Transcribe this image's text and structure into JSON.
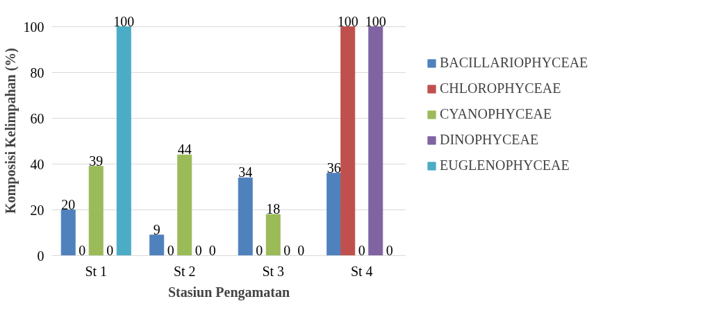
{
  "chart_data": {
    "type": "bar",
    "xlabel": "Stasiun Pengamatan",
    "ylabel": "Komposisi Kelimpahan (%)",
    "categories": [
      "St 1",
      "St 2",
      "St 3",
      "St 4"
    ],
    "series": [
      {
        "name": "BACILLARIOPHYCEAE",
        "color": "#4f81bd",
        "values": [
          20,
          9,
          34,
          36
        ]
      },
      {
        "name": "CHLOROPHYCEAE",
        "color": "#c0504d",
        "values": [
          0,
          0,
          0,
          100
        ]
      },
      {
        "name": "CYANOPHYCEAE",
        "color": "#9bbb59",
        "values": [
          39,
          44,
          18,
          0
        ]
      },
      {
        "name": "DINOPHYCEAE",
        "color": "#8064a2",
        "values": [
          0,
          0,
          0,
          100
        ]
      },
      {
        "name": "EUGLENOPHYCEAE",
        "color": "#4bacc6",
        "values": [
          100,
          0,
          0,
          0
        ]
      }
    ],
    "ylim": [
      0,
      100
    ],
    "yticks": [
      0,
      20,
      40,
      60,
      80,
      100
    ],
    "grid": "y",
    "legend": "right",
    "data_labels": true
  }
}
